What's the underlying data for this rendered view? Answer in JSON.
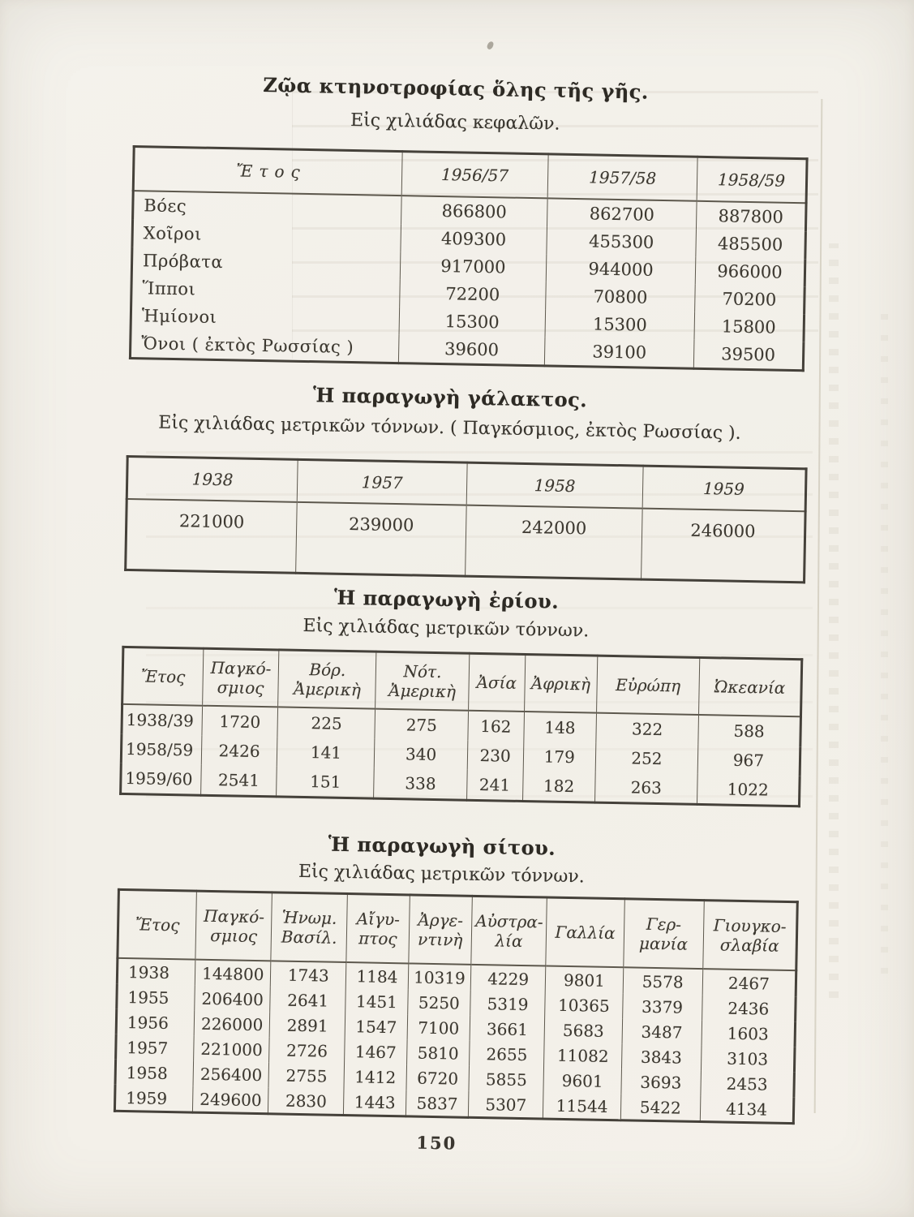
{
  "page_number": "150",
  "sections": [
    {
      "id": "livestock",
      "title": "Ζῷα κτηνοτροφίας ὅλης τῆς γῆς.",
      "subtitle": "Εἰς χιλιάδας κεφαλῶν.",
      "table": {
        "type": "table",
        "header": [
          "Ἔτος",
          "1956/57",
          "1957/58",
          "1958/59"
        ],
        "rows": [
          [
            "Βόες",
            "866800",
            "862700",
            "887800"
          ],
          [
            "Χοῖροι",
            "409300",
            "455300",
            "485500"
          ],
          [
            "Πρόβατα",
            "917000",
            "944000",
            "966000"
          ],
          [
            "Ἵπποι",
            "72200",
            "70800",
            "70200"
          ],
          [
            "Ἡμίονοι",
            "15300",
            "15300",
            "15800"
          ],
          [
            "Ὄνοι ( ἐκτὸς Ρωσσίας )",
            "39600",
            "39100",
            "39500"
          ]
        ]
      }
    },
    {
      "id": "milk",
      "title": "Ἡ παραγωγὴ γάλακτος.",
      "subtitle": "Εἰς χιλιάδας μετρικῶν τόννων. ( Παγκόσμιος, ἐκτὸς Ρωσσίας ).",
      "table": {
        "type": "table",
        "header": [
          "1938",
          "1957",
          "1958",
          "1959"
        ],
        "rows": [
          [
            "221000",
            "239000",
            "242000",
            "246000"
          ]
        ]
      }
    },
    {
      "id": "wool",
      "title": "Ἡ παραγωγὴ ἐρίου.",
      "subtitle": "Εἰς χιλιάδας μετρικῶν τόννων.",
      "table": {
        "type": "table",
        "header": [
          "Ἔτος",
          "Παγκό-\nσμιος",
          "Βόρ.\nἈμερικὴ",
          "Νότ.\nἈμερικὴ",
          "Ἀσία",
          "Ἀφρικὴ",
          "Εὐρώπη",
          "Ὠκεανία"
        ],
        "rows": [
          [
            "1938/39",
            "1720",
            "225",
            "275",
            "162",
            "148",
            "322",
            "588"
          ],
          [
            "1958/59",
            "2426",
            "141",
            "340",
            "230",
            "179",
            "252",
            "967"
          ],
          [
            "1959/60",
            "2541",
            "151",
            "338",
            "241",
            "182",
            "263",
            "1022"
          ]
        ]
      }
    },
    {
      "id": "wheat",
      "title": "Ἡ παραγωγὴ σίτου.",
      "subtitle": "Εἰς χιλιάδας μετρικῶν τόννων.",
      "table": {
        "type": "table",
        "header": [
          "Ἔτος",
          "Παγκό-\nσμιος",
          "Ἡνωμ.\nΒασίλ.",
          "Αἴγυ-\nπτος",
          "Ἀργε-\nντινὴ",
          "Αὐστρα-\nλία",
          "Γαλλία",
          "Γερ-\nμανία",
          "Γιουγκο-\nσλαβία"
        ],
        "rows": [
          [
            "1938",
            "144800",
            "1743",
            "1184",
            "10319",
            "4229",
            "9801",
            "5578",
            "2467"
          ],
          [
            "1955",
            "206400",
            "2641",
            "1451",
            "5250",
            "5319",
            "10365",
            "3379",
            "2436"
          ],
          [
            "1956",
            "226000",
            "2891",
            "1547",
            "7100",
            "3661",
            "5683",
            "3487",
            "1603"
          ],
          [
            "1957",
            "221000",
            "2726",
            "1467",
            "5810",
            "2655",
            "11082",
            "3843",
            "3103"
          ],
          [
            "1958",
            "256400",
            "2755",
            "1412",
            "6720",
            "5855",
            "9601",
            "3693",
            "2453"
          ],
          [
            "1959",
            "249600",
            "2830",
            "1443",
            "5837",
            "5307",
            "11544",
            "5422",
            "4134"
          ]
        ]
      }
    }
  ]
}
